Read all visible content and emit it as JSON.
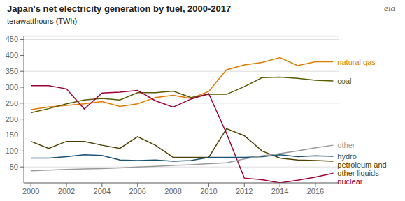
{
  "chart_data": {
    "type": "line",
    "title": "Japan's net electricity generation by fuel, 2000-2017",
    "subtitle": "terawatthours (TWh)",
    "annotations": [
      "eia"
    ],
    "x": [
      2000,
      2001,
      2002,
      2003,
      2004,
      2005,
      2006,
      2007,
      2008,
      2009,
      2010,
      2011,
      2012,
      2013,
      2014,
      2015,
      2016,
      2017
    ],
    "xlim": [
      1999.6,
      2017.3
    ],
    "xticks": [
      2000,
      2002,
      2004,
      2006,
      2008,
      2010,
      2012,
      2014,
      2016
    ],
    "ylim": [
      0,
      460
    ],
    "yticks": [
      50,
      100,
      150,
      200,
      250,
      300,
      350,
      400,
      450
    ],
    "grid": true,
    "series": [
      {
        "name": "natural gas",
        "color": "#e07b00",
        "values": [
          230,
          238,
          243,
          248,
          255,
          240,
          248,
          268,
          275,
          265,
          287,
          355,
          370,
          378,
          393,
          368,
          380,
          380
        ]
      },
      {
        "name": "coal",
        "color": "#5a5a00",
        "values": [
          220,
          233,
          248,
          260,
          265,
          260,
          283,
          283,
          288,
          268,
          278,
          278,
          302,
          330,
          332,
          328,
          322,
          320
        ]
      },
      {
        "name": "nuclear",
        "color": "#a0003a",
        "values": [
          305,
          305,
          295,
          232,
          282,
          285,
          290,
          258,
          238,
          263,
          280,
          155,
          15,
          10,
          0,
          8,
          18,
          30
        ]
      },
      {
        "name": "petroleum and\nother liquids",
        "color": "#4d4000",
        "values": [
          130,
          108,
          130,
          130,
          118,
          108,
          145,
          118,
          80,
          80,
          80,
          170,
          148,
          100,
          78,
          72,
          70,
          68
        ]
      },
      {
        "name": "hydro",
        "color": "#1a5276",
        "values": [
          78,
          78,
          82,
          88,
          86,
          72,
          70,
          72,
          68,
          70,
          80,
          80,
          80,
          82,
          88,
          82,
          85,
          83
        ]
      },
      {
        "name": "other",
        "color": "#999999",
        "values": [
          38,
          40,
          42,
          44,
          45,
          47,
          50,
          52,
          55,
          57,
          60,
          63,
          75,
          85,
          92,
          100,
          110,
          118
        ]
      }
    ]
  }
}
